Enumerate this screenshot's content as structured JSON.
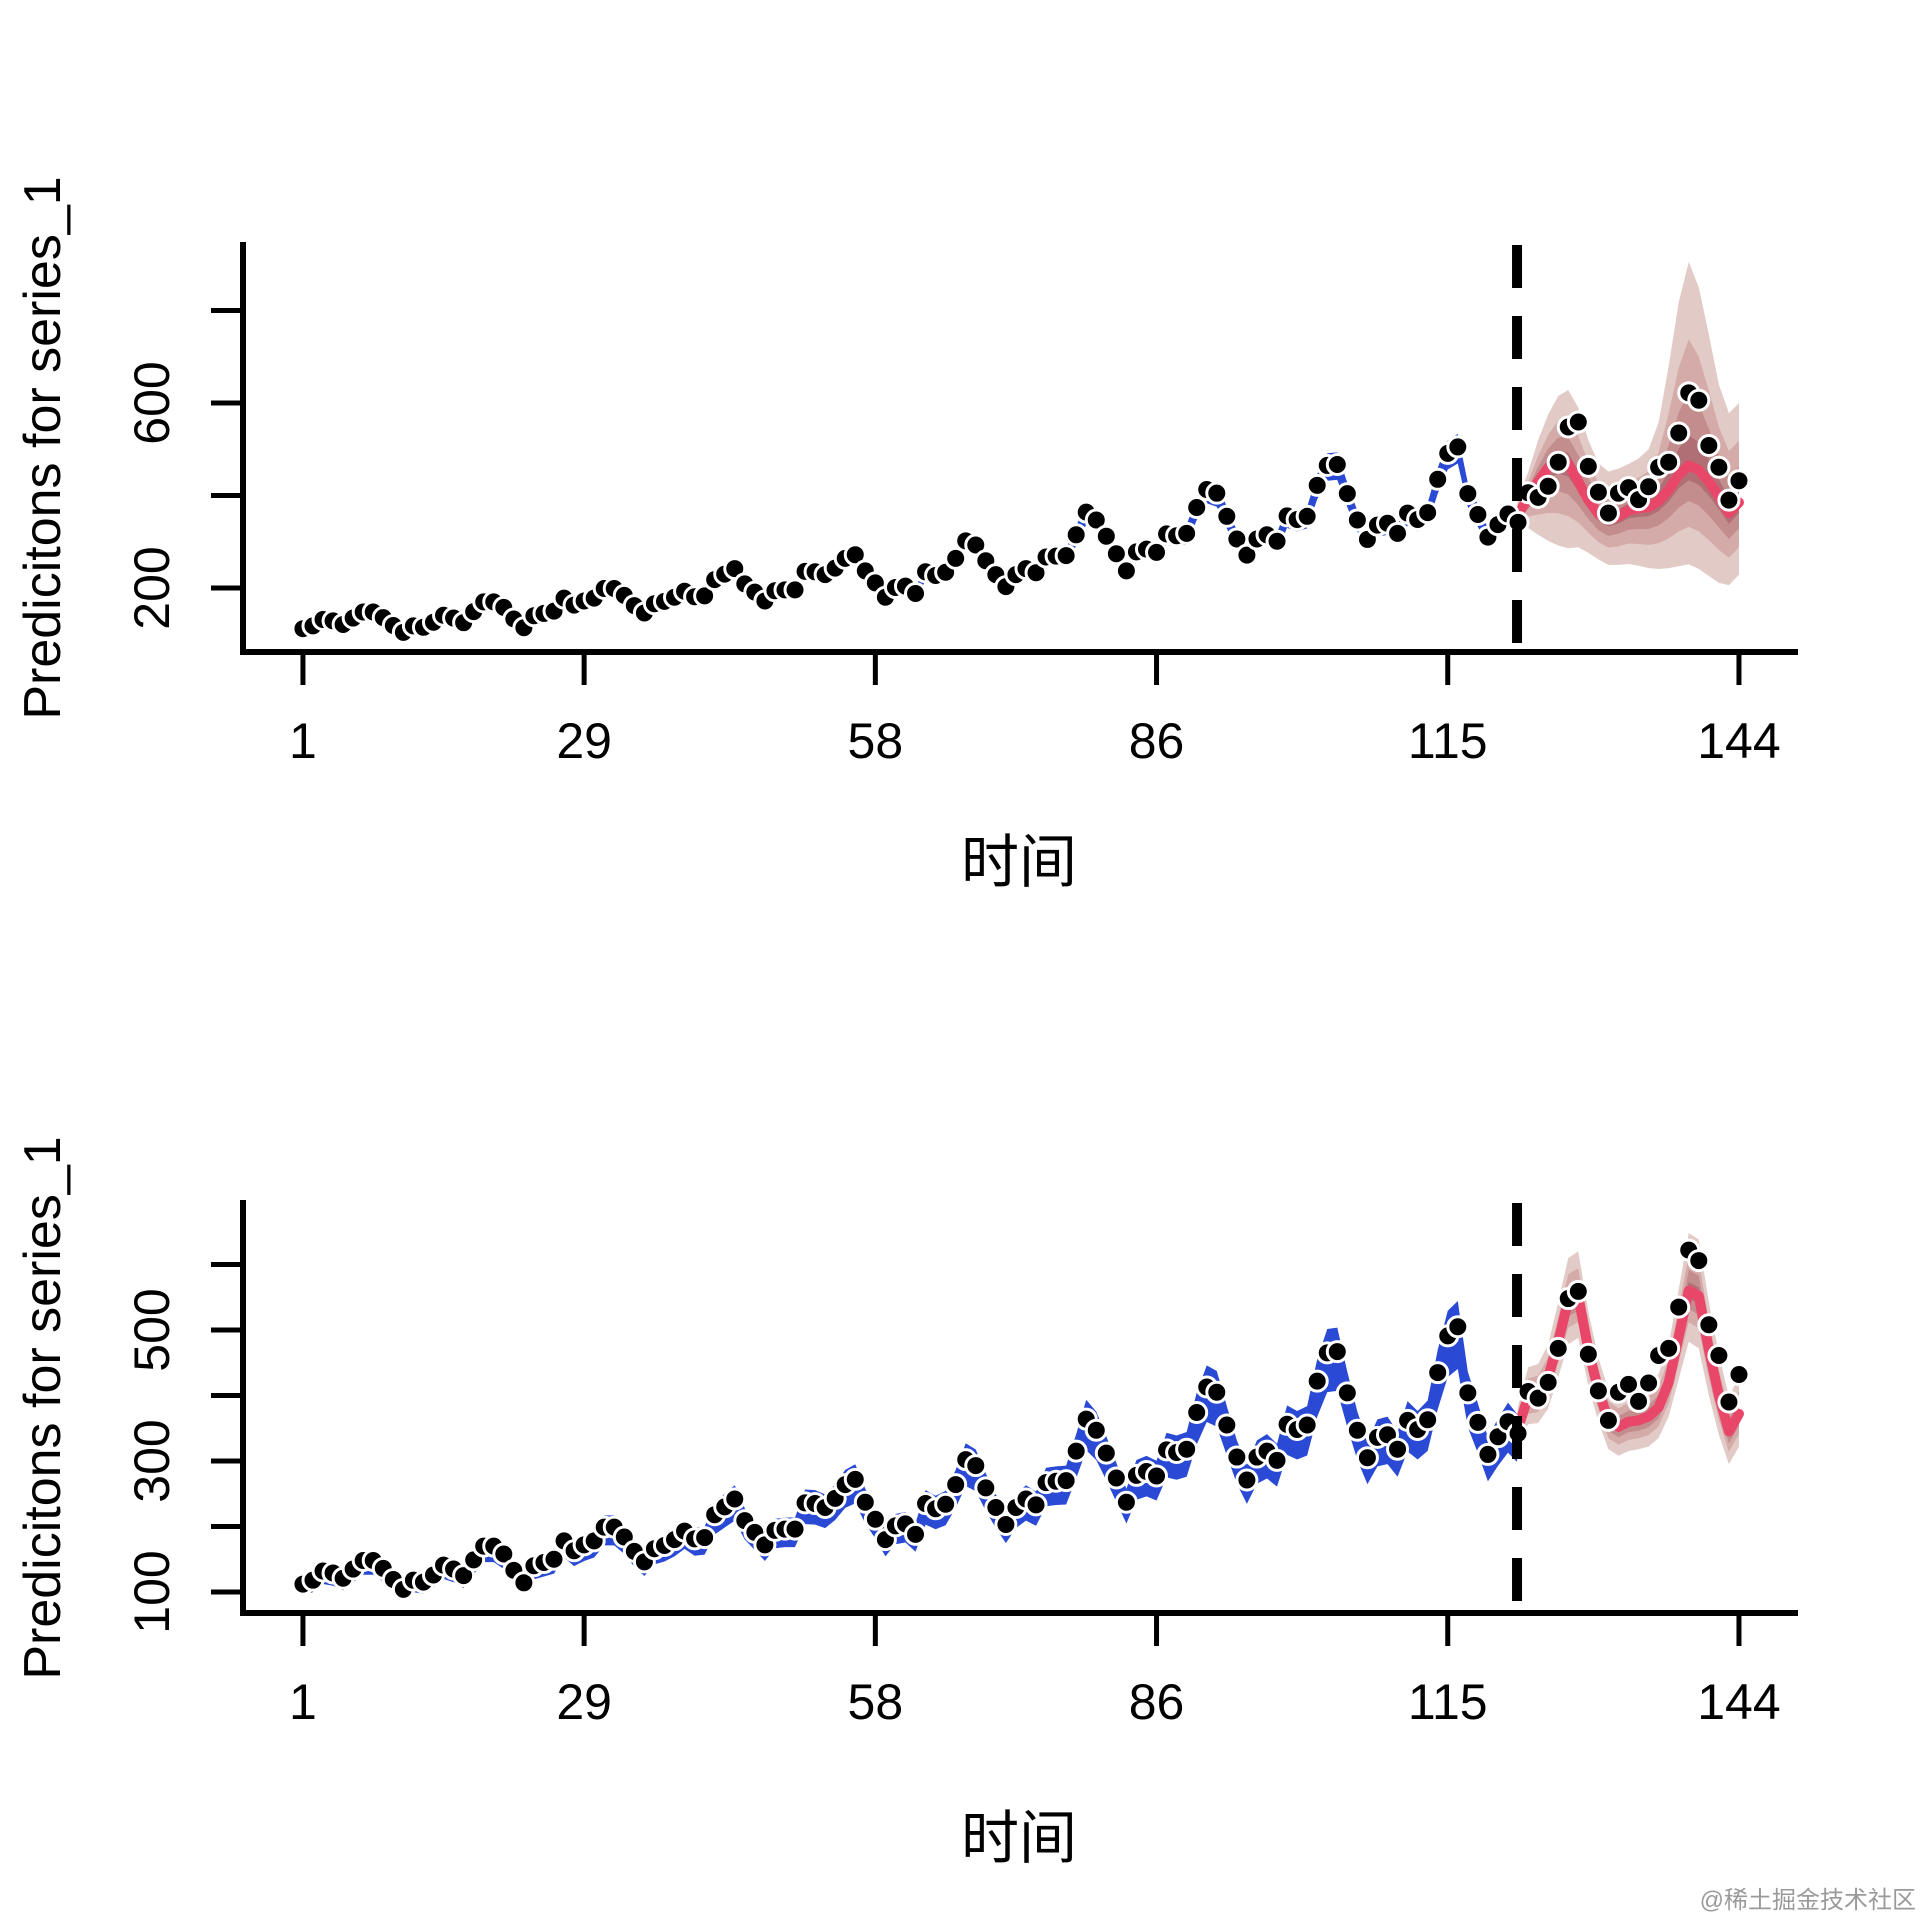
{
  "watermark": {
    "text": "@稀土掘金技术社区",
    "color": "#9a9a9a"
  },
  "chart_data": {
    "type": "line",
    "x_start": 1,
    "n_points": 144,
    "observed": [
      112,
      118,
      132,
      129,
      121,
      135,
      148,
      148,
      136,
      119,
      104,
      118,
      115,
      126,
      141,
      135,
      125,
      149,
      170,
      170,
      158,
      133,
      114,
      140,
      145,
      150,
      178,
      163,
      172,
      178,
      199,
      199,
      184,
      162,
      146,
      166,
      171,
      180,
      193,
      181,
      183,
      218,
      230,
      242,
      209,
      191,
      172,
      194,
      196,
      196,
      236,
      235,
      229,
      243,
      264,
      272,
      237,
      211,
      180,
      201,
      204,
      188,
      235,
      227,
      234,
      264,
      302,
      293,
      259,
      229,
      203,
      229,
      242,
      233,
      267,
      269,
      270,
      315,
      364,
      347,
      312,
      274,
      237,
      278,
      284,
      277,
      317,
      313,
      318,
      374,
      413,
      405,
      355,
      306,
      271,
      306,
      315,
      301,
      356,
      348,
      355,
      422,
      465,
      467,
      404,
      347,
      305,
      336,
      340,
      318,
      362,
      348,
      363,
      435,
      491,
      505,
      404,
      359,
      310,
      337,
      360,
      342,
      406,
      396,
      420,
      472,
      548,
      559,
      463,
      407,
      362,
      405,
      417,
      391,
      419,
      461,
      472,
      535,
      622,
      606,
      508,
      461,
      390,
      432
    ],
    "train_test_divider_x": 121.9,
    "forecast_start_x": 122,
    "x_ticks": [
      1,
      29,
      58,
      86,
      115,
      144
    ],
    "xlim": [
      -4.97,
      149.58
    ],
    "colors": {
      "hindcast_band": "#2a4ad5",
      "forecast_bands": [
        "#e2cbc7",
        "#d4aba8",
        "#c38d8e",
        "#b06f74"
      ],
      "forecast_band_fracs": [
        1.0,
        0.62,
        0.36,
        0.15
      ],
      "forecast_median": "#e9476a",
      "points": "#000000",
      "point_stroke": "#ffffff",
      "axis": "#000000",
      "divider": "#000000"
    },
    "panels": [
      {
        "ylabel": "Predicitons for series_1",
        "xlabel": "时间",
        "y_ticks": [
          200,
          400,
          600,
          800
        ],
        "y_ticks_labeled": [
          200,
          600
        ],
        "ylim": [
          61.6,
          941.6
        ],
        "hindcast_upper_frac": 0.05,
        "hindcast_lower_frac": 0.065,
        "hindcast_abs": 3,
        "forecast_median": [
          358,
          395,
          430,
          460,
          475,
          468,
          430,
          390,
          360,
          348,
          355,
          368,
          372,
          375,
          388,
          412,
          445,
          465,
          455,
          430,
          398,
          362,
          385
        ],
        "forecast_upper95": [
          395,
          450,
          520,
          575,
          615,
          628,
          590,
          520,
          470,
          452,
          458,
          468,
          480,
          500,
          558,
          680,
          818,
          905,
          850,
          748,
          640,
          578,
          600
        ],
        "forecast_lower95": [
          325,
          330,
          315,
          302,
          292,
          286,
          288,
          276,
          262,
          250,
          250,
          252,
          248,
          243,
          241,
          243,
          247,
          251,
          241,
          226,
          211,
          206,
          229
        ]
      },
      {
        "ylabel": "Predicitons for series_1",
        "xlabel": "时间",
        "y_ticks": [
          100,
          200,
          300,
          400,
          500,
          600
        ],
        "y_ticks_labeled": [
          100,
          300,
          500
        ],
        "ylim": [
          67.9,
          693.9
        ],
        "hindcast_upper_frac": 0.07,
        "hindcast_lower_frac": 0.12,
        "hindcast_abs": 4,
        "forecast_median": [
          350,
          398,
          402,
          428,
          482,
          545,
          552,
          470,
          408,
          362,
          352,
          360,
          362,
          368,
          382,
          420,
          490,
          560,
          552,
          470,
          400,
          345,
          372
        ],
        "forecast_upper95": [
          383,
          443,
          448,
          478,
          542,
          610,
          620,
          528,
          458,
          408,
          398,
          406,
          408,
          416,
          433,
          478,
          562,
          648,
          638,
          543,
          463,
          398,
          428
        ],
        "forecast_lower95": [
          318,
          356,
          358,
          380,
          428,
          478,
          488,
          415,
          360,
          318,
          308,
          315,
          318,
          322,
          335,
          368,
          425,
          482,
          472,
          400,
          340,
          295,
          322
        ]
      }
    ]
  }
}
